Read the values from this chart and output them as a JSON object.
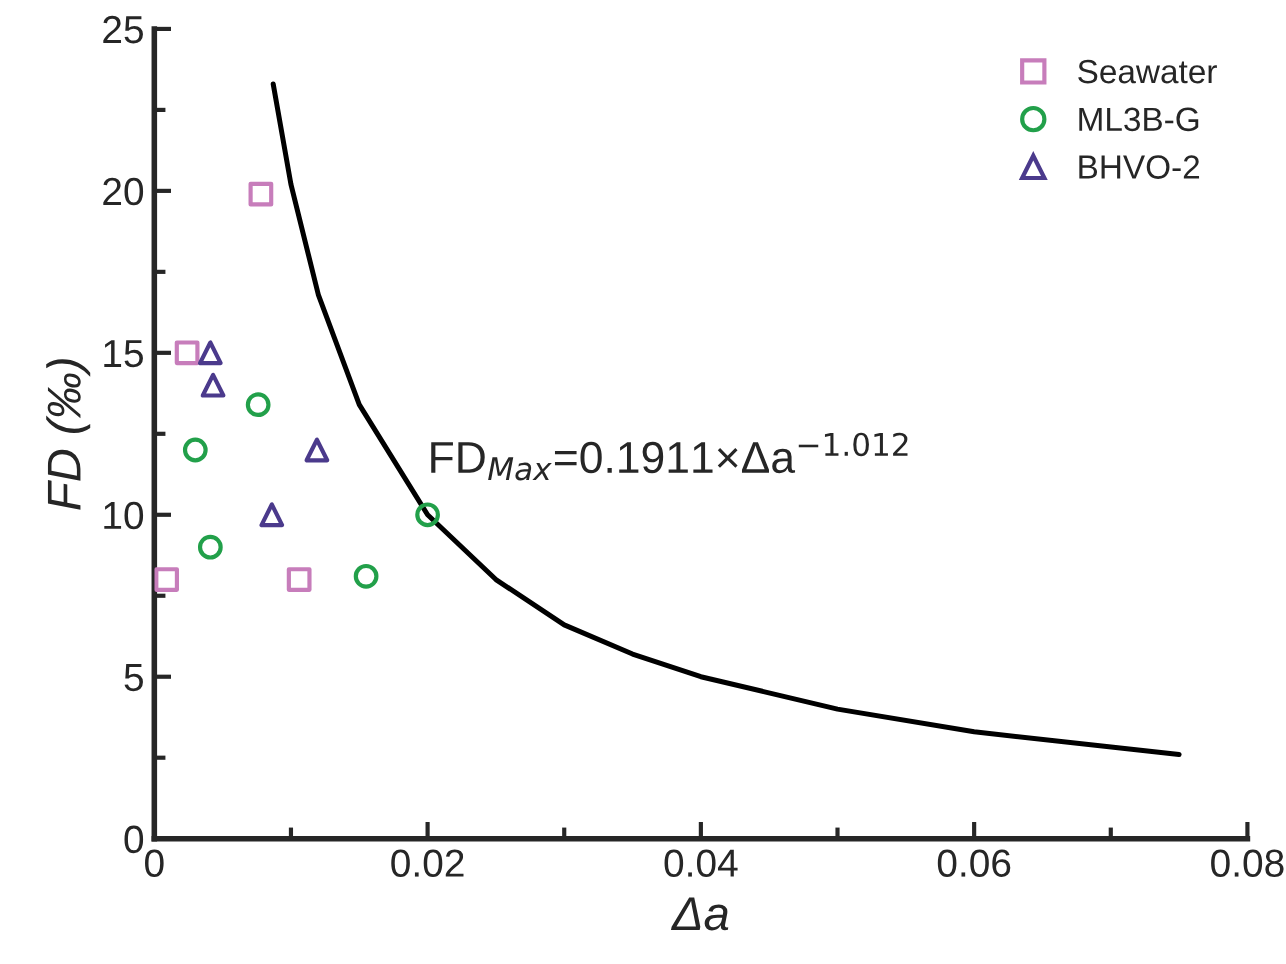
{
  "chart_data": {
    "type": "scatter",
    "xlabel": "Δa",
    "ylabel": "FD (‰)",
    "xlim": [
      0,
      0.08
    ],
    "xticks": [
      {
        "value": 0,
        "label": "0"
      },
      0.02,
      0.04,
      0.06,
      0.08
    ],
    "ylim": [
      0,
      25
    ],
    "yticks": [
      0,
      5,
      10,
      15,
      20,
      25
    ],
    "grid": false,
    "legend": "top right",
    "annotations": [
      "FD$_{Max}$=0.1911×Δa$^{−1.012}$"
    ],
    "series": [
      {
        "name": "Seawater",
        "color": "#c77dbb",
        "marker": "square",
        "x": [
          0.0009,
          0.0106,
          0.0024,
          0.0078
        ],
        "values": [
          8,
          8,
          15,
          19.9
        ]
      },
      {
        "name": "ML3B-G",
        "color": "#22a04a",
        "marker": "circle",
        "x": [
          0.0076,
          0.003,
          0.02,
          0.0041,
          0.0155
        ],
        "values": [
          13.4,
          12,
          10,
          9,
          8.1
        ]
      },
      {
        "name": "BHVO-2",
        "color": "#4b3a8c",
        "marker": "triangle",
        "x": [
          0.0041,
          0.0043,
          0.0119,
          0.0086
        ],
        "values": [
          15,
          14,
          12,
          10
        ]
      },
      {
        "type": "line",
        "color": "#000000",
        "marker": "none",
        "x": [
          0.0087,
          0.01,
          0.012,
          0.015,
          0.02,
          0.025,
          0.03,
          0.035,
          0.04,
          0.05,
          0.06,
          0.075
        ],
        "values": [
          23.3,
          20.2,
          16.8,
          13.4,
          10.0,
          8.0,
          6.6,
          5.7,
          5.0,
          4.0,
          3.3,
          2.6
        ]
      }
    ]
  }
}
